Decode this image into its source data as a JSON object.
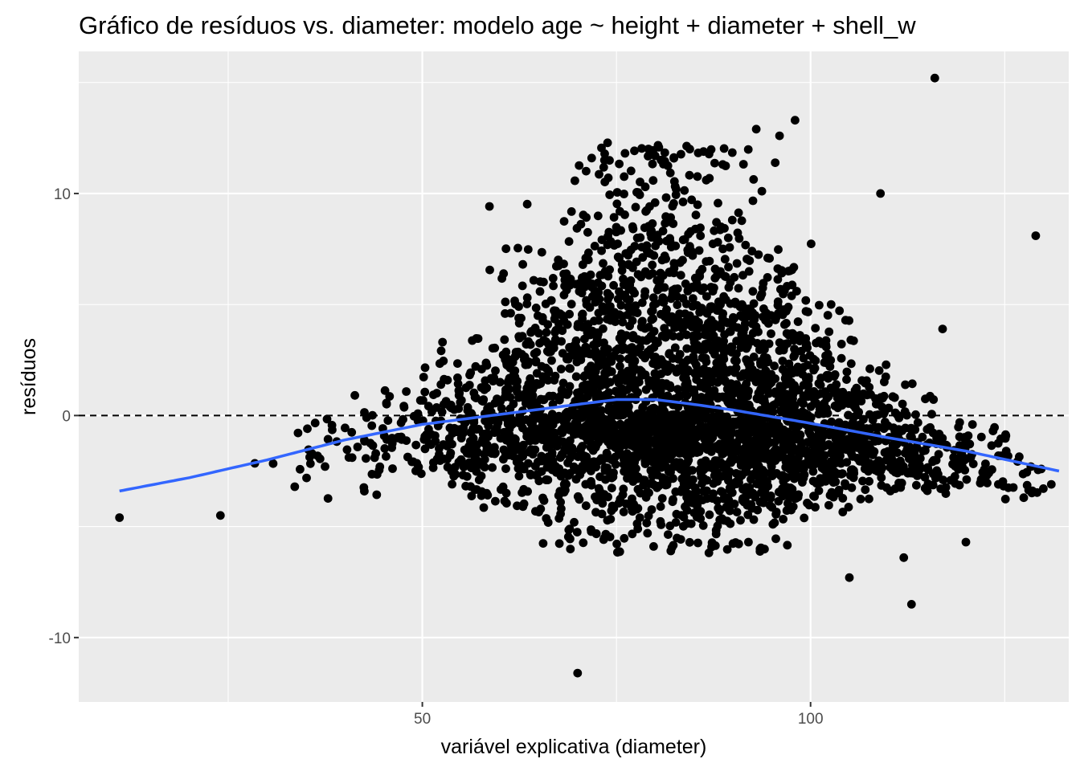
{
  "chart_data": {
    "type": "scatter",
    "title": "Gráfico de resíduos vs. diameter: modelo age ~ height + diameter + shell_w",
    "xlabel": "variável explicativa (diameter)",
    "ylabel": "resíduos",
    "xlim": [
      5.75,
      133.25
    ],
    "ylim": [
      -12.9,
      16.4
    ],
    "x_ticks": [
      50,
      100
    ],
    "x_tick_labels": [
      "50",
      "100"
    ],
    "x_minor_breaks": [
      25,
      75,
      125
    ],
    "y_ticks": [
      -10,
      0,
      10
    ],
    "y_tick_labels": [
      "-10",
      "0",
      "10"
    ],
    "y_minor_breaks": [
      -5,
      5,
      15
    ],
    "grid": true,
    "legend": "none",
    "reference_line": {
      "y": 0,
      "style": "dashed",
      "color": "#000000"
    },
    "colors": {
      "points": "#000000",
      "smooth": "#3366FF",
      "panel": "#EBEBEB",
      "grid": "#FFFFFF"
    },
    "smooth_curve": {
      "x": [
        11,
        20,
        30,
        40,
        50,
        60,
        70,
        75,
        80,
        85,
        90,
        95,
        100,
        110,
        120,
        132
      ],
      "y": [
        -3.4,
        -2.8,
        -2.0,
        -1.1,
        -0.4,
        0.05,
        0.5,
        0.72,
        0.72,
        0.5,
        0.25,
        -0.05,
        -0.35,
        -1.0,
        -1.6,
        -2.5
      ]
    },
    "outliers": {
      "x": [
        11,
        24,
        70,
        79,
        82,
        92,
        93,
        96,
        98,
        116,
        117,
        120,
        129,
        131,
        113,
        105,
        112,
        109
      ],
      "y": [
        -4.6,
        -4.5,
        -11.6,
        -5.3,
        -6.1,
        -5.7,
        12.9,
        12.6,
        13.3,
        15.2,
        3.9,
        -5.7,
        8.1,
        -3.1,
        -8.5,
        -7.3,
        -6.4,
        10.0
      ]
    },
    "point_cloud": {
      "x_range": [
        18,
        130
      ],
      "n_points": 3600,
      "center_curve": "smooth_curve",
      "peak_spread_at_x": 80,
      "note_visible": false
    }
  }
}
